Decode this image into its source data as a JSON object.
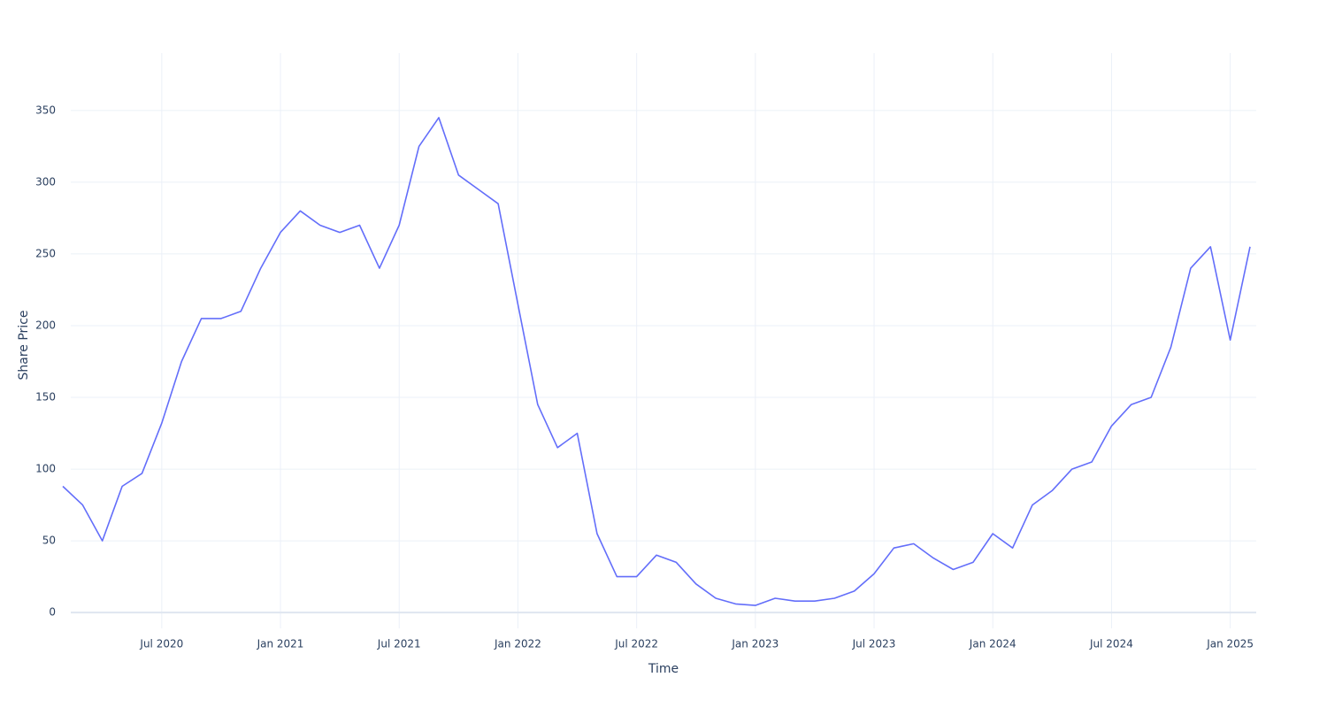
{
  "chart_data": {
    "type": "line",
    "x_title": "Time",
    "y_title": "Share Price",
    "x": [
      "2020-02",
      "2020-03",
      "2020-04",
      "2020-05",
      "2020-06",
      "2020-07",
      "2020-08",
      "2020-09",
      "2020-10",
      "2020-11",
      "2020-12",
      "2021-01",
      "2021-02",
      "2021-03",
      "2021-04",
      "2021-05",
      "2021-06",
      "2021-07",
      "2021-08",
      "2021-09",
      "2021-10",
      "2021-11",
      "2021-12",
      "2022-01",
      "2022-02",
      "2022-03",
      "2022-04",
      "2022-05",
      "2022-06",
      "2022-07",
      "2022-08",
      "2022-09",
      "2022-10",
      "2022-11",
      "2022-12",
      "2023-01",
      "2023-02",
      "2023-03",
      "2023-04",
      "2023-05",
      "2023-06",
      "2023-07",
      "2023-08",
      "2023-09",
      "2023-10",
      "2023-11",
      "2023-12",
      "2024-01",
      "2024-02",
      "2024-03",
      "2024-04",
      "2024-05",
      "2024-06",
      "2024-07",
      "2024-08",
      "2024-09",
      "2024-10",
      "2024-11",
      "2024-12",
      "2025-01",
      "2025-02"
    ],
    "series": [
      {
        "color": "#636efa",
        "values": [
          88,
          75,
          50,
          88,
          97,
          132,
          175,
          205,
          205,
          210,
          240,
          265,
          280,
          270,
          265,
          270,
          240,
          270,
          325,
          345,
          305,
          295,
          285,
          215,
          145,
          115,
          125,
          55,
          25,
          25,
          40,
          35,
          20,
          10,
          6,
          5,
          10,
          8,
          8,
          10,
          15,
          27,
          45,
          48,
          38,
          30,
          35,
          55,
          45,
          75,
          85,
          100,
          105,
          130,
          145,
          150,
          185,
          240,
          255,
          190,
          255
        ]
      }
    ],
    "xlim": [
      "2020-02",
      "2025-02"
    ],
    "xticks": [
      {
        "value": "2020-07",
        "label": "Jul 2020"
      },
      {
        "value": "2021-01",
        "label": "Jan 2021"
      },
      {
        "value": "2021-07",
        "label": "Jul 2021"
      },
      {
        "value": "2022-01",
        "label": "Jan 2022"
      },
      {
        "value": "2022-07",
        "label": "Jul 2022"
      },
      {
        "value": "2023-01",
        "label": "Jan 2023"
      },
      {
        "value": "2023-07",
        "label": "Jul 2023"
      },
      {
        "value": "2024-01",
        "label": "Jan 2024"
      },
      {
        "value": "2024-07",
        "label": "Jul 2024"
      },
      {
        "value": "2025-01",
        "label": "Jan 2025"
      }
    ],
    "ylim": [
      -11,
      390
    ],
    "yticks": [
      0,
      50,
      100,
      150,
      200,
      250,
      300,
      350
    ],
    "grid": true
  }
}
